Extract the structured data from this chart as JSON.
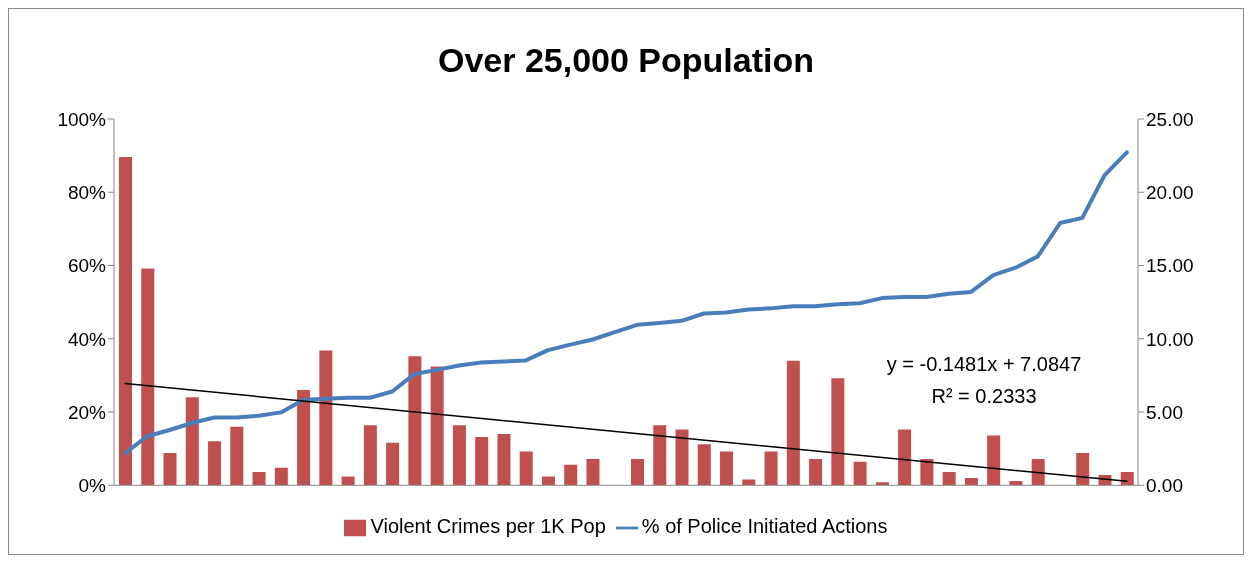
{
  "chart_data": {
    "type": "bar",
    "title": "Over 25,000 Population",
    "categories": [
      null,
      null,
      null,
      null,
      null,
      null,
      null,
      null,
      null,
      null,
      null,
      null,
      null,
      null,
      null,
      null,
      null,
      null,
      null,
      null,
      null,
      null,
      null,
      null,
      null,
      null,
      null,
      null,
      null,
      null,
      null,
      null,
      null,
      null,
      null,
      null,
      null,
      null,
      null,
      null,
      null,
      null,
      null,
      null,
      null,
      null
    ],
    "series": [
      {
        "name": "Violent Crimes per 1K Pop",
        "axis": "y2",
        "color": "#c0504d",
        "values": [
          22.4,
          14.8,
          2.2,
          6.0,
          3.0,
          4.0,
          0.9,
          1.2,
          6.5,
          9.2,
          0.6,
          4.1,
          2.9,
          8.8,
          8.1,
          4.1,
          3.3,
          3.5,
          2.3,
          0.6,
          1.4,
          1.8,
          0,
          1.8,
          4.1,
          3.8,
          2.8,
          2.3,
          0.4,
          2.3,
          8.5,
          1.8,
          7.3,
          1.6,
          0.2,
          3.8,
          1.8,
          0.9,
          0.5,
          3.4,
          0.3,
          1.8,
          0,
          2.2,
          0.7,
          0.9
        ]
      },
      {
        "name": "% of Police Initiated Actions",
        "type": "line",
        "axis": "y",
        "color": "#4a7ebb",
        "values": [
          8.8,
          13.4,
          15.1,
          17.0,
          18.5,
          18.5,
          19.0,
          19.9,
          23.3,
          23.6,
          23.9,
          23.9,
          25.6,
          30.4,
          31.5,
          32.7,
          33.5,
          33.8,
          34.1,
          36.9,
          38.4,
          39.8,
          41.8,
          43.8,
          44.3,
          44.9,
          46.9,
          47.2,
          48.0,
          48.3,
          48.9,
          48.9,
          49.4,
          49.7,
          51.1,
          51.4,
          51.4,
          52.3,
          52.8,
          57.4,
          59.4,
          62.5,
          71.6,
          73.0,
          84.7,
          90.9
        ]
      },
      {
        "type": "line",
        "axis": "y2",
        "color": "#000000",
        "values": [
          6.94,
          null,
          null,
          null,
          null,
          null,
          null,
          null,
          null,
          null,
          null,
          null,
          null,
          null,
          null,
          null,
          null,
          null,
          null,
          null,
          null,
          null,
          null,
          null,
          null,
          null,
          null,
          null,
          null,
          null,
          null,
          null,
          null,
          null,
          null,
          null,
          null,
          null,
          null,
          null,
          null,
          null,
          null,
          null,
          null,
          0.27
        ]
      }
    ],
    "ylim": [
      0,
      100
    ],
    "yticks": [
      {
        "value": 0,
        "label": "0%"
      },
      {
        "value": 20,
        "label": "20%"
      },
      {
        "value": 40,
        "label": "40%"
      },
      {
        "value": 60,
        "label": "60%"
      },
      {
        "value": 80,
        "label": "80%"
      },
      {
        "value": 100,
        "label": "100%"
      }
    ],
    "y2lim": [
      0,
      25
    ],
    "y2ticks": [
      {
        "value": 0,
        "label": "0.00"
      },
      {
        "value": 5,
        "label": "5.00"
      },
      {
        "value": 10,
        "label": "10.00"
      },
      {
        "value": 15,
        "label": "15.00"
      },
      {
        "value": 20,
        "label": "20.00"
      },
      {
        "value": 25,
        "label": "25.00"
      }
    ],
    "annotations": [
      "y = -0.1481x + 7.0847",
      "R² = 0.2333"
    ],
    "grid": false,
    "legend": "bottom",
    "marker": "none",
    "line_style": "solid"
  }
}
